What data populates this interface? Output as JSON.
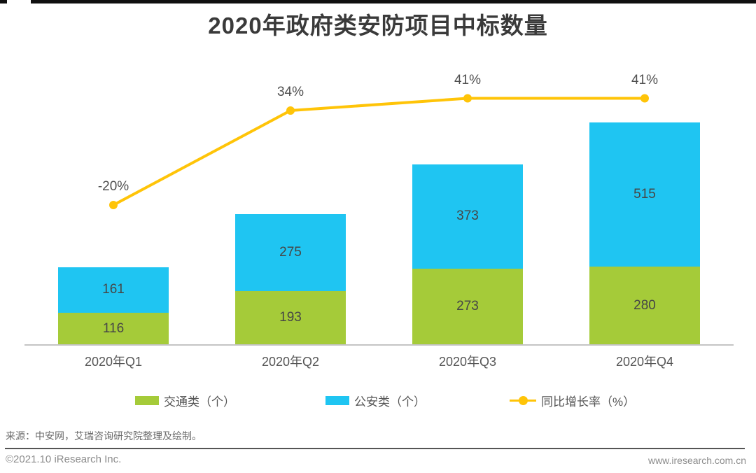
{
  "chart_data": {
    "type": "bar",
    "subtype": "stacked-bar-with-line-overlay",
    "title": "2020年政府类安防项目中标数量",
    "categories": [
      "2020年Q1",
      "2020年Q2",
      "2020年Q3",
      "2020年Q4"
    ],
    "series": [
      {
        "name": "交通类（个）",
        "type": "bar",
        "stack": "total",
        "color": "#a5cb39",
        "values": [
          116,
          193,
          273,
          280
        ]
      },
      {
        "name": "公安类（个）",
        "type": "bar",
        "stack": "total",
        "color": "#1fc5f2",
        "values": [
          161,
          275,
          373,
          515
        ]
      },
      {
        "name": "同比增长率（%）",
        "type": "line",
        "color": "#ffc408",
        "values": [
          -20,
          34,
          41,
          41
        ],
        "point_labels": [
          "-20%",
          "34%",
          "41%",
          "41%"
        ]
      }
    ],
    "value_labels_shown": true,
    "legend_position": "bottom",
    "grid": false,
    "y_axis_shown": false,
    "x_axis_line_color": "#c4c4c4"
  },
  "footer": {
    "source": "来源：中安网，艾瑞咨询研究院整理及绘制。",
    "copyright": "©2021.10 iResearch Inc.",
    "website": "www.iresearch.com.cn"
  },
  "colors": {
    "traffic_green": "#a5cb39",
    "security_blue": "#1fc5f2",
    "growth_yellow": "#ffc408",
    "title_text": "#3a3a3a",
    "value_text": "#464646",
    "axis_text": "#555555",
    "footer_text": "#8c8c8c"
  }
}
